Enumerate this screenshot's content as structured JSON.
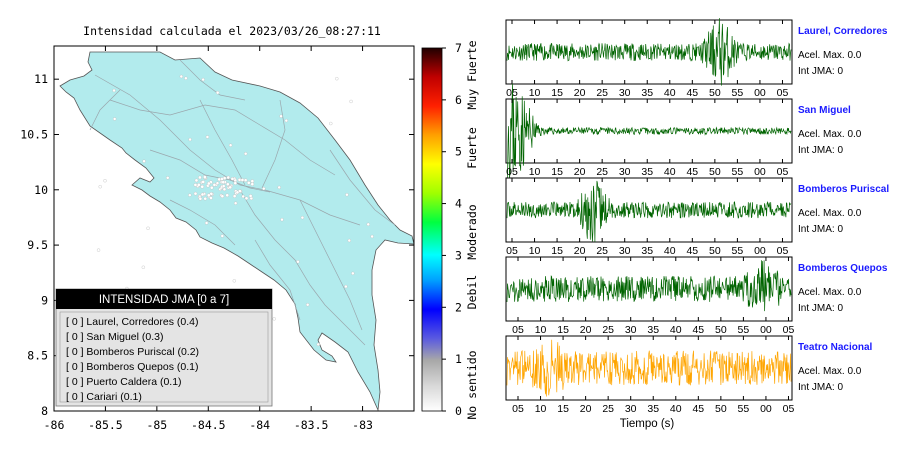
{
  "map": {
    "title": "Intensidad calculada el 2023/03/26_08:27:11",
    "xlim": [
      -86,
      -82.5
    ],
    "ylim": [
      8,
      11.3
    ],
    "xticks": [
      "-86",
      "-85.5",
      "-85",
      "-84.5",
      "-84",
      "-83.5",
      "-83"
    ],
    "yticks": [
      "8",
      "8.5",
      "9",
      "9.5",
      "10",
      "10.5",
      "11"
    ],
    "land_color": "#b2ebed"
  },
  "colorbar": {
    "ticks": [
      "0",
      "1",
      "2",
      "3",
      "4",
      "5",
      "6",
      "7"
    ],
    "labels": [
      "No sentido",
      "Debil",
      "Moderado",
      "Fuerte",
      "Muy Fuerte"
    ]
  },
  "legend": {
    "title": "INTENSIDAD JMA [0 a 7]",
    "items": [
      "[ 0 ]  Laurel, Corredores (0.4)",
      "[ 0 ]  San Miguel (0.3)",
      "[ 0 ]  Bomberos Puriscal (0.2)",
      "[ 0 ]  Bomberos Quepos (0.1)",
      "[ 0 ]  Puerto Caldera (0.1)",
      "[ 0 ]  Cariari (0.1)"
    ]
  },
  "chart_data": [
    {
      "type": "heatmap",
      "title": "Intensidad calculada el 2023/03/26_08:27:11",
      "xlim": [
        -86,
        -82.5
      ],
      "ylim": [
        8,
        11.3
      ],
      "colorbar_range": [
        0,
        7
      ],
      "stations": [
        {
          "name": "Laurel, Corredores",
          "intensity": 0,
          "value": 0.4
        },
        {
          "name": "San Miguel",
          "intensity": 0,
          "value": 0.3
        },
        {
          "name": "Bomberos Puriscal",
          "intensity": 0,
          "value": 0.2
        },
        {
          "name": "Bomberos Quepos",
          "intensity": 0,
          "value": 0.1
        },
        {
          "name": "Puerto Caldera",
          "intensity": 0,
          "value": 0.1
        },
        {
          "name": "Cariari",
          "intensity": 0,
          "value": 0.1
        }
      ]
    },
    {
      "type": "line",
      "xlabel": "Tiempo (s)",
      "xticks": [
        "05",
        "10",
        "15",
        "20",
        "25",
        "30",
        "35",
        "40",
        "45",
        "50",
        "55",
        "00",
        "05"
      ],
      "series": [
        {
          "name": "Laurel, Corredores",
          "accel_label": "Acel. Max. 0.0",
          "int_label": "Int JMA: 0",
          "color": "#006400",
          "amplitude": 0.3,
          "burst_at": 0.75,
          "burst": 1.0,
          "seed": 11,
          "shift": 0
        },
        {
          "name": "San Miguel",
          "accel_label": "Acel. Max. 0.0",
          "int_label": "Int JMA: 0",
          "color": "#006400",
          "amplitude": 0.12,
          "burst_at": 0.03,
          "burst": 1.0,
          "seed": 23,
          "shift": 0
        },
        {
          "name": "Bomberos Puriscal",
          "accel_label": "Acel. Max. 0.0",
          "int_label": "Int JMA: 0",
          "color": "#006400",
          "amplitude": 0.28,
          "burst_at": 0.3,
          "burst": 0.95,
          "seed": 37,
          "shift": 0
        },
        {
          "name": "Bomberos Quepos",
          "accel_label": "Acel. Max. 0.0",
          "int_label": "Int JMA: 0",
          "color": "#006400",
          "amplitude": 0.45,
          "burst_at": 0.9,
          "burst": 0.7,
          "seed": 51,
          "shift": 1
        },
        {
          "name": "Teatro Nacional",
          "accel_label": "Acel. Max. 0.0",
          "int_label": "Int JMA: 0",
          "color": "#ffa500",
          "amplitude": 0.6,
          "burst_at": 0.15,
          "burst": 0.5,
          "seed": 67,
          "shift": 1
        }
      ]
    }
  ]
}
